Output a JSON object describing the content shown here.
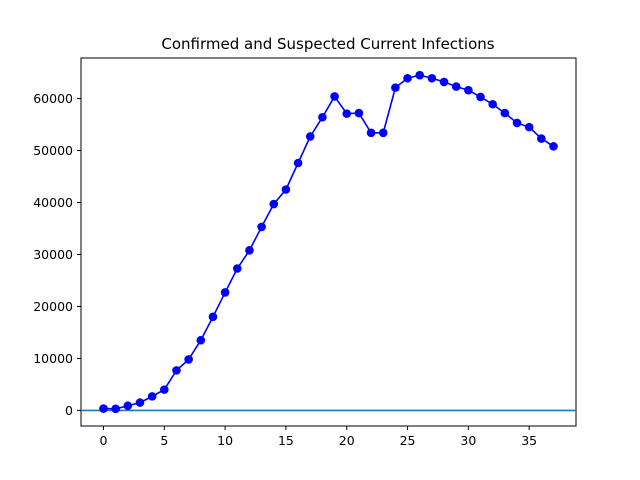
{
  "chart_data": {
    "type": "line",
    "title": "Confirmed and Suspected Current Infections",
    "xlabel": "",
    "ylabel": "",
    "xlim": [
      -1.85,
      38.85
    ],
    "ylim": [
      -3000,
      67800
    ],
    "xticks": [
      0,
      5,
      10,
      15,
      20,
      25,
      30,
      35
    ],
    "yticks": [
      0,
      10000,
      20000,
      30000,
      40000,
      50000,
      60000
    ],
    "grid": false,
    "legend": "none",
    "series": [
      {
        "color": "#0000ff",
        "marker": "circle",
        "x": [
          0,
          1,
          2,
          3,
          4,
          5,
          6,
          7,
          8,
          9,
          10,
          11,
          12,
          13,
          14,
          15,
          16,
          17,
          18,
          19,
          20,
          21,
          22,
          23,
          24,
          25,
          26,
          27,
          28,
          29,
          30,
          31,
          32,
          33,
          34,
          35,
          36,
          37
        ],
        "values": [
          350,
          300,
          900,
          1500,
          2700,
          4000,
          7700,
          9800,
          13500,
          18000,
          22700,
          27300,
          30800,
          35300,
          39700,
          42500,
          47600,
          52700,
          56400,
          60400,
          57100,
          57200,
          53400,
          53400,
          62100,
          63900,
          64500,
          63900,
          63200,
          62300,
          61600,
          60300,
          58900,
          57200,
          55300,
          54500,
          52300,
          50800
        ]
      }
    ],
    "reference_lines": [
      {
        "orientation": "horizontal",
        "y": 0,
        "color": "#1f77b4"
      }
    ]
  }
}
